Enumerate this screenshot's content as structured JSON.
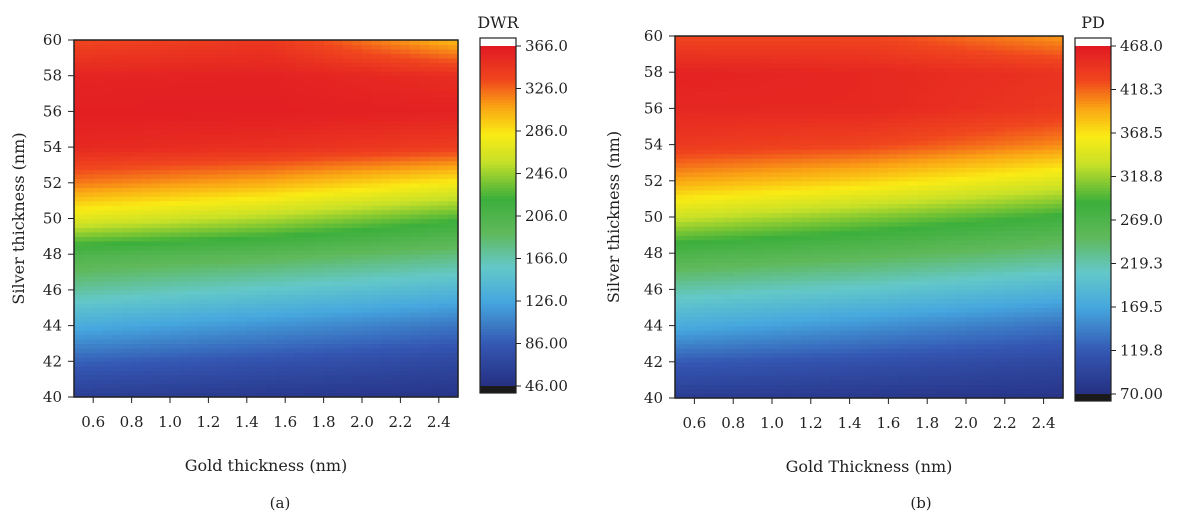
{
  "chart_data": [
    {
      "type": "heatmap",
      "panel_label": "(a)",
      "xlabel": "Gold thickness (nm)",
      "ylabel": "Silver thickness (nm)",
      "xlim": [
        0.5,
        2.5
      ],
      "ylim": [
        40,
        60
      ],
      "x_ticks": [
        "0.6",
        "0.8",
        "1.0",
        "1.2",
        "1.4",
        "1.6",
        "1.8",
        "2.0",
        "2.2",
        "2.4"
      ],
      "y_ticks": [
        "40",
        "42",
        "44",
        "46",
        "48",
        "50",
        "52",
        "54",
        "56",
        "58",
        "60"
      ],
      "colorbar": {
        "title": "DWR",
        "min": 46.0,
        "max": 366.0,
        "ticks": [
          "46.00",
          "86.00",
          "126.0",
          "166.0",
          "206.0",
          "246.0",
          "286.0",
          "326.0",
          "366.0"
        ]
      },
      "surface": {
        "x": [
          0.5,
          1.5,
          2.5
        ],
        "y": [
          40,
          42,
          44,
          46,
          48,
          50,
          52,
          54,
          56,
          58,
          60
        ],
        "z": [
          [
            60,
            55,
            50
          ],
          [
            90,
            80,
            70
          ],
          [
            130,
            115,
            100
          ],
          [
            170,
            155,
            140
          ],
          [
            205,
            195,
            180
          ],
          [
            270,
            250,
            225
          ],
          [
            320,
            305,
            280
          ],
          [
            355,
            350,
            340
          ],
          [
            362,
            362,
            360
          ],
          [
            358,
            360,
            352
          ],
          [
            335,
            345,
            300
          ]
        ]
      }
    },
    {
      "type": "heatmap",
      "panel_label": "(b)",
      "xlabel": "Gold Thickness (nm)",
      "ylabel": "Silver thickness (nm)",
      "xlim": [
        0.5,
        2.5
      ],
      "ylim": [
        40,
        60
      ],
      "x_ticks": [
        "0.6",
        "0.8",
        "1.0",
        "1.2",
        "1.4",
        "1.6",
        "1.8",
        "2.0",
        "2.2",
        "2.4"
      ],
      "y_ticks": [
        "40",
        "42",
        "44",
        "46",
        "48",
        "50",
        "52",
        "54",
        "56",
        "58",
        "60"
      ],
      "colorbar": {
        "title": "PD",
        "min": 70.0,
        "max": 468.0,
        "ticks": [
          "70.00",
          "119.8",
          "169.5",
          "219.3",
          "269.0",
          "318.8",
          "368.5",
          "418.3",
          "468.0"
        ]
      },
      "surface": {
        "x": [
          0.5,
          1.5,
          2.5
        ],
        "y": [
          40,
          42,
          44,
          46,
          48,
          50,
          52,
          54,
          56,
          58,
          60
        ],
        "z": [
          [
            85,
            80,
            75
          ],
          [
            120,
            110,
            100
          ],
          [
            175,
            155,
            135
          ],
          [
            220,
            205,
            185
          ],
          [
            270,
            255,
            235
          ],
          [
            335,
            310,
            285
          ],
          [
            395,
            375,
            345
          ],
          [
            440,
            430,
            405
          ],
          [
            455,
            455,
            440
          ],
          [
            460,
            455,
            445
          ],
          [
            430,
            430,
            400
          ]
        ]
      }
    }
  ]
}
